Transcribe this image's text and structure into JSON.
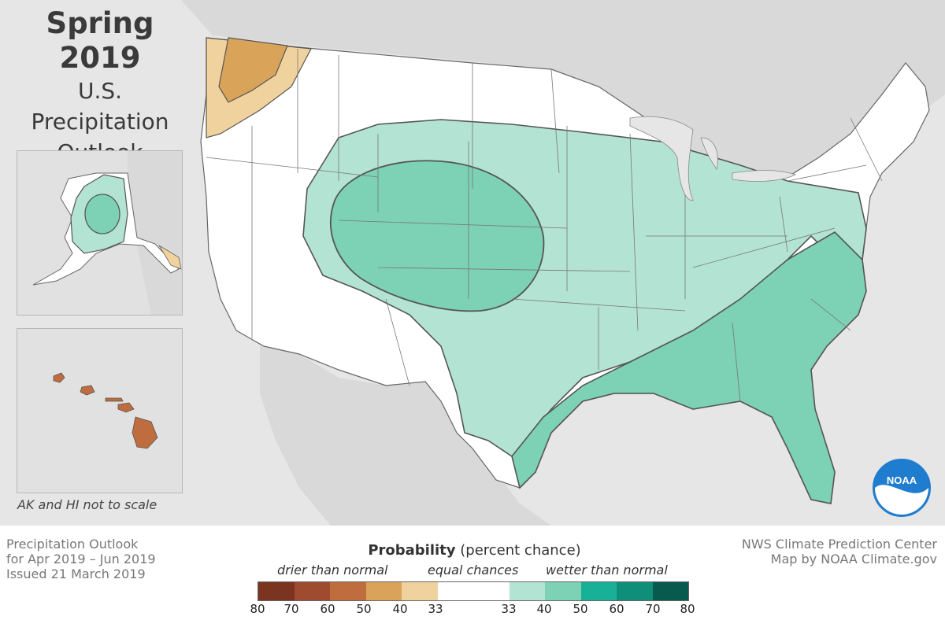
{
  "title": {
    "main": "Spring 2019",
    "line1": "U.S.",
    "line2": "Precipitation",
    "line3": "Outlook"
  },
  "inset_note": "AK and HI not to scale",
  "logo_text": "NOAA",
  "footer_left": {
    "line1": "Precipitation Outlook",
    "line2": "for Apr 2019 – Jun 2019",
    "line3": "Issued 21 March 2019"
  },
  "footer_right": {
    "line1": "NWS Climate Prediction Center",
    "line2": "Map by NOAA Climate.gov"
  },
  "legend": {
    "title_bold": "Probability",
    "title_rest": "(percent chance)",
    "drier": "drier than normal",
    "equal": "equal chances",
    "wetter": "wetter than normal",
    "ticks": [
      "80",
      "70",
      "60",
      "50",
      "40",
      "33",
      "33",
      "40",
      "50",
      "60",
      "70",
      "80"
    ],
    "colors": {
      "dry80": "#7b3420",
      "dry70": "#9e4b30",
      "dry60": "#bf6d3e",
      "dry50": "#d9a45a",
      "dry40": "#f0d29e",
      "equal": "#ffffff",
      "wet40": "#b3e3d3",
      "wet50": "#7dd1b5",
      "wet60": "#18b096",
      "wet70": "#0f8e7a",
      "wet80": "#075a4d"
    }
  },
  "map_colors": {
    "ocean": "#e6e6e6",
    "land_outside": "#d9d9d9",
    "equal": "#ffffff",
    "dry40": "#f0d29e",
    "dry50": "#d9a45a",
    "wet40": "#b3e3d3",
    "wet50": "#7dd1b5",
    "hawaii": "#bf6d3e"
  }
}
